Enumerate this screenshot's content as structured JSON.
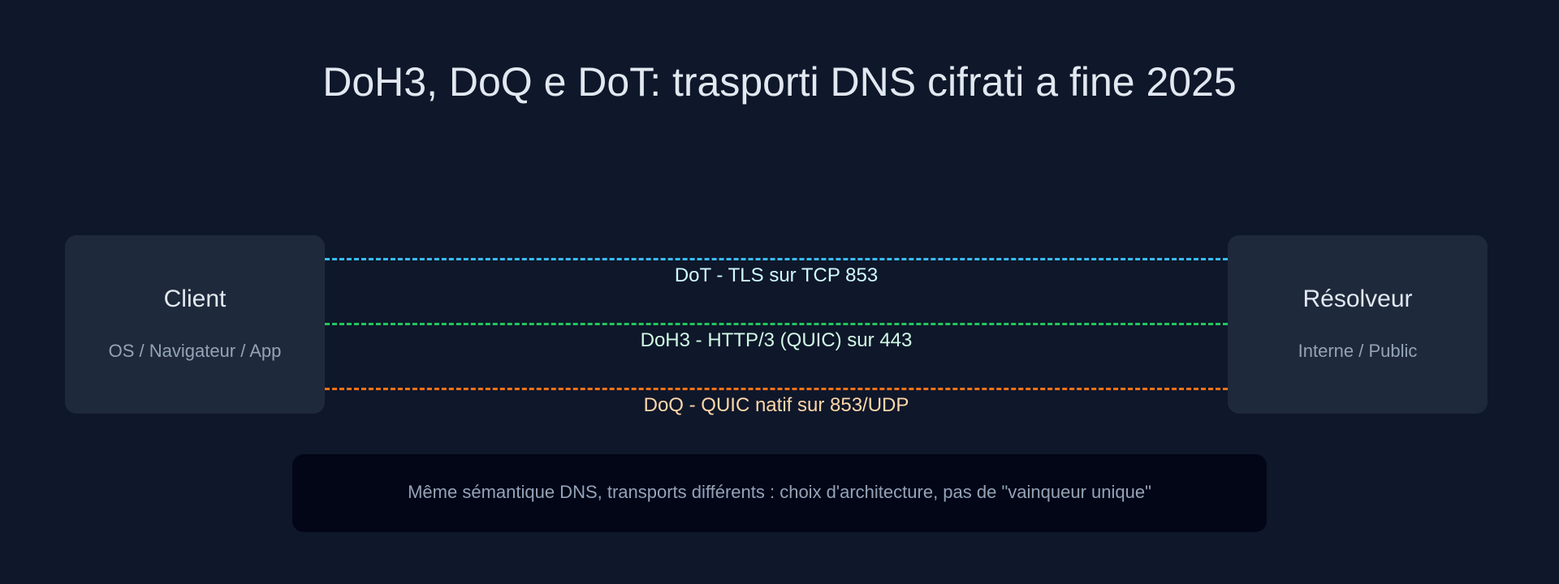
{
  "title": "DoH3, DoQ e DoT: trasporti DNS cifrati a fine 2025",
  "client": {
    "name": "Client",
    "subtitle": "OS / Navigateur / App"
  },
  "resolver": {
    "name": "Résolveur",
    "subtitle": "Interne / Public"
  },
  "links": [
    {
      "label": "DoT - TLS sur TCP 853",
      "line_color": "#38bdf8",
      "text_color": "#cffafe"
    },
    {
      "label": "DoH3 - HTTP/3 (QUIC) sur 443",
      "line_color": "#22c55e",
      "text_color": "#d1fae5"
    },
    {
      "label": "DoQ - QUIC natif sur 853/UDP",
      "line_color": "#f97316",
      "text_color": "#fed7aa"
    }
  ],
  "note": "Même sémantique DNS, transports différents : choix d'architecture, pas de \"vainqueur unique\""
}
